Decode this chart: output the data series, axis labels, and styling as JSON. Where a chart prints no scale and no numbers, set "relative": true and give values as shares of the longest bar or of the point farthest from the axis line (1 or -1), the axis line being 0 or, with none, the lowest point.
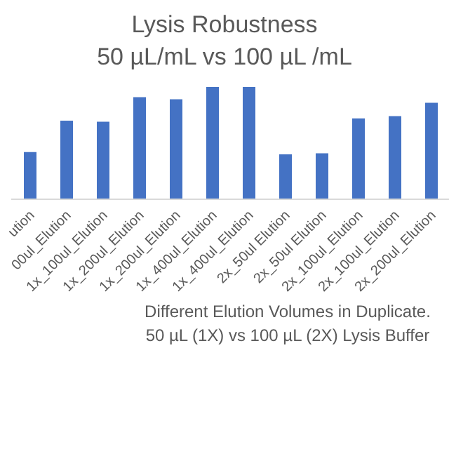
{
  "chart_data": {
    "type": "bar",
    "title": "Lysis Robustness",
    "subtitle": "50 µL/mL vs 100 µL /mL",
    "xlabel": "Different Elution Volumes in Duplicate.\n50 µL (1X) vs 100 µL  (2X) Lysis Buffer",
    "categories": [
      "ution",
      "00ul_Elution",
      "1x_100ul_Elution",
      "1x_200ul_Elution",
      "1x_200ul_Elution",
      "1x_400ul_Elution",
      "1x_400ul_Elution",
      "2x_50ul Elution",
      "2x_50ul Elution",
      "2x_100ul_Elution",
      "2x_100ul_Elution",
      "2x_200ul_Elution"
    ],
    "values": [
      0.42,
      0.7,
      0.69,
      0.91,
      0.89,
      1,
      1,
      0.4,
      0.41,
      0.72,
      0.74,
      0.86
    ],
    "color": "#4472c4",
    "relative": true
  }
}
